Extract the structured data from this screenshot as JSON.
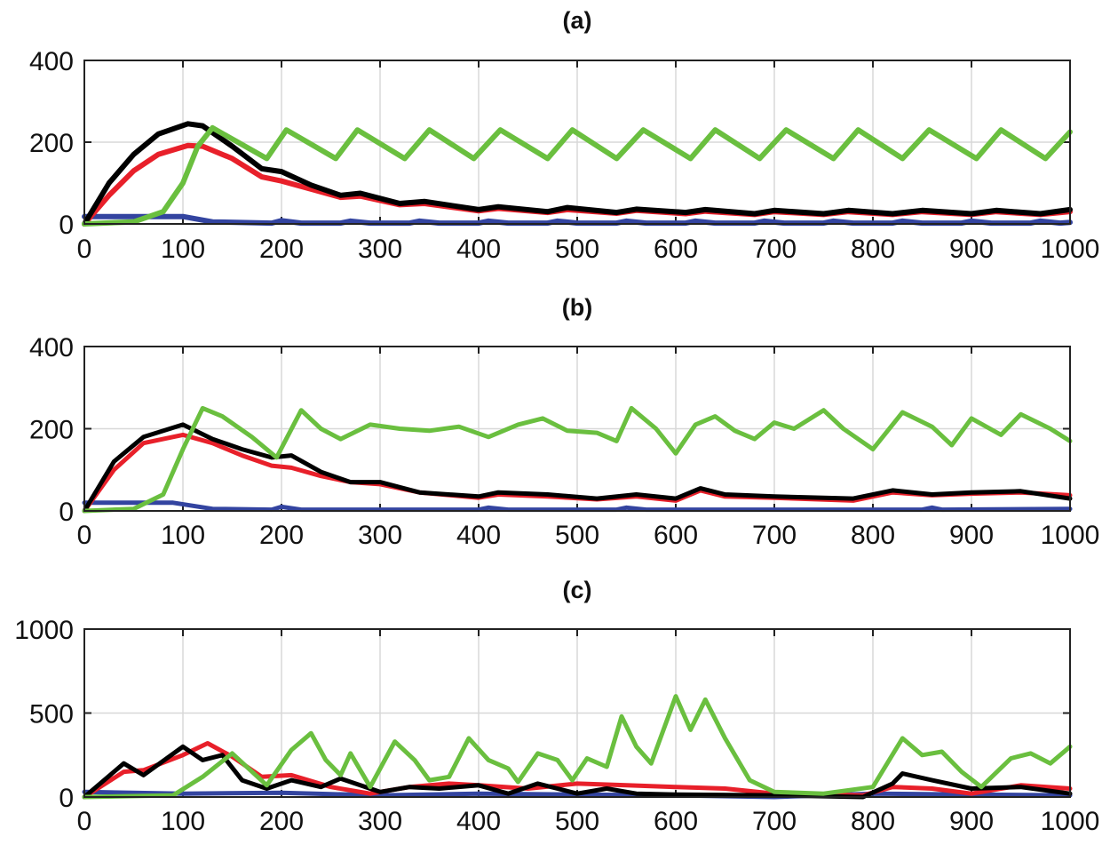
{
  "colors": {
    "black": "#000000",
    "red": "#e8202a",
    "green": "#6abf3f",
    "blue": "#3344a0"
  },
  "chart_data": [
    {
      "type": "line",
      "title": "(a)",
      "xlim": [
        0,
        1000
      ],
      "ylim": [
        0,
        400
      ],
      "xticks": [
        0,
        100,
        200,
        300,
        400,
        500,
        600,
        700,
        800,
        900,
        1000
      ],
      "yticks": [
        0,
        200,
        400
      ],
      "grid": true,
      "series": [
        {
          "color": "#3344a0",
          "x": [
            0,
            100,
            130,
            190,
            200,
            220,
            260,
            270,
            290,
            330,
            340,
            360,
            400,
            410,
            430,
            470,
            480,
            500,
            540,
            550,
            570,
            610,
            620,
            640,
            680,
            690,
            710,
            750,
            760,
            780,
            820,
            830,
            850,
            890,
            900,
            920,
            960,
            970,
            990,
            1000
          ],
          "y": [
            18,
            18,
            5,
            2,
            8,
            2,
            2,
            7,
            2,
            2,
            7,
            2,
            2,
            7,
            2,
            2,
            7,
            2,
            2,
            7,
            2,
            2,
            7,
            2,
            2,
            7,
            2,
            2,
            7,
            2,
            2,
            7,
            2,
            2,
            7,
            2,
            2,
            7,
            2,
            4
          ]
        },
        {
          "color": "#e8202a",
          "x": [
            0,
            25,
            50,
            75,
            105,
            120,
            150,
            180,
            200,
            230,
            260,
            280,
            320,
            345,
            400,
            420,
            470,
            490,
            540,
            560,
            610,
            630,
            680,
            700,
            750,
            775,
            820,
            850,
            900,
            925,
            970,
            1000
          ],
          "y": [
            0,
            70,
            130,
            170,
            192,
            190,
            160,
            115,
            105,
            85,
            65,
            68,
            47,
            50,
            32,
            38,
            28,
            35,
            26,
            33,
            25,
            31,
            23,
            30,
            23,
            30,
            23,
            30,
            23,
            30,
            23,
            30
          ]
        },
        {
          "color": "#000000",
          "x": [
            0,
            25,
            50,
            75,
            105,
            120,
            150,
            180,
            200,
            230,
            260,
            280,
            320,
            345,
            400,
            420,
            470,
            490,
            540,
            560,
            610,
            630,
            680,
            700,
            750,
            775,
            820,
            850,
            900,
            925,
            970,
            1000
          ],
          "y": [
            0,
            100,
            170,
            220,
            245,
            240,
            190,
            135,
            128,
            95,
            70,
            75,
            50,
            55,
            35,
            42,
            30,
            40,
            28,
            36,
            28,
            35,
            25,
            33,
            25,
            33,
            25,
            33,
            25,
            33,
            25,
            35
          ]
        },
        {
          "color": "#6abf3f",
          "x": [
            0,
            50,
            80,
            100,
            115,
            130,
            185,
            205,
            255,
            277,
            325,
            350,
            395,
            422,
            470,
            495,
            540,
            567,
            615,
            640,
            685,
            712,
            760,
            785,
            830,
            857,
            905,
            930,
            975,
            1000
          ],
          "y": [
            0,
            5,
            30,
            100,
            190,
            235,
            160,
            230,
            160,
            230,
            160,
            230,
            160,
            230,
            160,
            230,
            160,
            230,
            160,
            230,
            160,
            230,
            160,
            230,
            160,
            230,
            160,
            230,
            160,
            225
          ]
        }
      ]
    },
    {
      "type": "line",
      "title": "(b)",
      "xlim": [
        0,
        1000
      ],
      "ylim": [
        0,
        400
      ],
      "xticks": [
        0,
        100,
        200,
        300,
        400,
        500,
        600,
        700,
        800,
        900,
        1000
      ],
      "yticks": [
        0,
        200,
        400
      ],
      "grid": true,
      "series": [
        {
          "color": "#3344a0",
          "x": [
            0,
            90,
            130,
            190,
            200,
            220,
            400,
            410,
            430,
            540,
            550,
            570,
            800,
            850,
            860,
            870,
            1000
          ],
          "y": [
            20,
            20,
            5,
            3,
            10,
            3,
            3,
            8,
            3,
            3,
            8,
            3,
            3,
            3,
            8,
            3,
            5
          ]
        },
        {
          "color": "#e8202a",
          "x": [
            0,
            30,
            60,
            100,
            130,
            160,
            190,
            210,
            240,
            270,
            300,
            340,
            400,
            420,
            470,
            520,
            560,
            600,
            625,
            650,
            700,
            780,
            820,
            860,
            900,
            950,
            1000
          ],
          "y": [
            0,
            100,
            165,
            185,
            165,
            135,
            110,
            105,
            85,
            70,
            65,
            45,
            32,
            40,
            35,
            28,
            35,
            25,
            50,
            35,
            32,
            25,
            45,
            38,
            42,
            45,
            38
          ]
        },
        {
          "color": "#000000",
          "x": [
            0,
            30,
            60,
            100,
            130,
            160,
            190,
            210,
            240,
            270,
            300,
            340,
            400,
            420,
            470,
            520,
            560,
            600,
            625,
            650,
            700,
            780,
            820,
            860,
            900,
            950,
            1000
          ],
          "y": [
            0,
            120,
            180,
            210,
            175,
            150,
            130,
            135,
            95,
            70,
            70,
            45,
            35,
            45,
            40,
            30,
            40,
            30,
            55,
            40,
            35,
            30,
            50,
            40,
            45,
            48,
            30
          ]
        },
        {
          "color": "#6abf3f",
          "x": [
            0,
            50,
            80,
            100,
            120,
            140,
            170,
            195,
            220,
            240,
            260,
            290,
            320,
            350,
            380,
            410,
            440,
            465,
            490,
            520,
            540,
            555,
            580,
            600,
            620,
            640,
            660,
            680,
            700,
            720,
            750,
            770,
            800,
            830,
            860,
            880,
            900,
            930,
            950,
            980,
            1000
          ],
          "y": [
            0,
            5,
            40,
            150,
            250,
            230,
            180,
            130,
            245,
            200,
            175,
            210,
            200,
            195,
            205,
            180,
            210,
            225,
            195,
            190,
            170,
            250,
            200,
            140,
            210,
            230,
            195,
            175,
            215,
            200,
            245,
            200,
            150,
            240,
            205,
            160,
            225,
            185,
            235,
            200,
            170
          ]
        }
      ]
    },
    {
      "type": "line",
      "title": "(c)",
      "xlim": [
        0,
        1000
      ],
      "ylim": [
        0,
        1000
      ],
      "xticks": [
        0,
        100,
        200,
        300,
        400,
        500,
        600,
        700,
        800,
        900,
        1000
      ],
      "yticks": [
        0,
        500,
        1000
      ],
      "grid": true,
      "series": [
        {
          "color": "#3344a0",
          "x": [
            0,
            100,
            200,
            300,
            400,
            500,
            600,
            700,
            800,
            900,
            1000
          ],
          "y": [
            30,
            20,
            25,
            10,
            20,
            15,
            10,
            0,
            20,
            15,
            10
          ]
        },
        {
          "color": "#e8202a",
          "x": [
            0,
            40,
            60,
            100,
            125,
            150,
            180,
            210,
            250,
            290,
            330,
            370,
            400,
            450,
            500,
            550,
            600,
            650,
            700,
            790,
            820,
            860,
            900,
            950,
            1000
          ],
          "y": [
            0,
            150,
            160,
            250,
            320,
            240,
            120,
            130,
            60,
            20,
            60,
            80,
            70,
            50,
            80,
            70,
            60,
            50,
            20,
            10,
            60,
            50,
            20,
            70,
            50
          ]
        },
        {
          "color": "#000000",
          "x": [
            0,
            40,
            60,
            100,
            120,
            140,
            160,
            185,
            210,
            240,
            260,
            280,
            300,
            330,
            360,
            400,
            430,
            460,
            480,
            500,
            530,
            560,
            600,
            700,
            790,
            820,
            830,
            860,
            900,
            950,
            1000
          ],
          "y": [
            0,
            200,
            130,
            300,
            220,
            250,
            100,
            50,
            100,
            60,
            110,
            70,
            30,
            60,
            50,
            70,
            20,
            80,
            50,
            20,
            50,
            20,
            15,
            10,
            0,
            80,
            140,
            100,
            50,
            60,
            20
          ]
        },
        {
          "color": "#6abf3f",
          "x": [
            0,
            90,
            120,
            150,
            185,
            210,
            230,
            245,
            260,
            270,
            290,
            315,
            335,
            350,
            370,
            390,
            410,
            430,
            440,
            460,
            480,
            495,
            510,
            530,
            545,
            560,
            575,
            600,
            615,
            630,
            650,
            675,
            700,
            750,
            800,
            830,
            850,
            870,
            890,
            910,
            940,
            960,
            980,
            1000
          ],
          "y": [
            0,
            10,
            120,
            260,
            70,
            280,
            380,
            220,
            130,
            260,
            60,
            330,
            220,
            100,
            120,
            350,
            220,
            170,
            90,
            260,
            220,
            100,
            230,
            180,
            480,
            300,
            200,
            600,
            400,
            580,
            350,
            100,
            30,
            20,
            60,
            350,
            250,
            270,
            150,
            60,
            230,
            260,
            200,
            300
          ]
        }
      ]
    }
  ]
}
